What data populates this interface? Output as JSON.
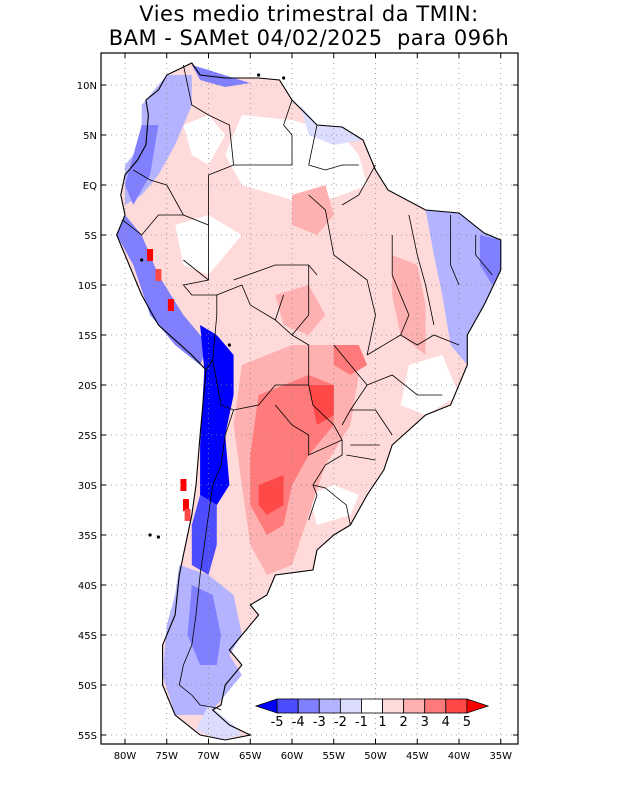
{
  "title": {
    "line1": "Vies medio trimestral da TMIN:",
    "line2": "BAM - SAMet 04/02/2025  para 096h"
  },
  "map": {
    "type": "filled-contour-map",
    "region": "South America",
    "variable": "TMIN bias",
    "grid": "dotted",
    "lon_range": [
      -83,
      -34
    ],
    "lat_range": [
      -56,
      13
    ],
    "x_ticks": [
      {
        "lon": -80,
        "label": "80W"
      },
      {
        "lon": -75,
        "label": "75W"
      },
      {
        "lon": -70,
        "label": "70W"
      },
      {
        "lon": -65,
        "label": "65W"
      },
      {
        "lon": -60,
        "label": "60W"
      },
      {
        "lon": -55,
        "label": "55W"
      },
      {
        "lon": -50,
        "label": "50W"
      },
      {
        "lon": -45,
        "label": "45W"
      },
      {
        "lon": -40,
        "label": "40W"
      },
      {
        "lon": -35,
        "label": "35W"
      }
    ],
    "y_ticks": [
      {
        "lat": 10,
        "label": "10N"
      },
      {
        "lat": 5,
        "label": "5N"
      },
      {
        "lat": 0,
        "label": "EQ"
      },
      {
        "lat": -5,
        "label": "5S"
      },
      {
        "lat": -10,
        "label": "10S"
      },
      {
        "lat": -15,
        "label": "15S"
      },
      {
        "lat": -20,
        "label": "20S"
      },
      {
        "lat": -25,
        "label": "25S"
      },
      {
        "lat": -30,
        "label": "30S"
      },
      {
        "lat": -35,
        "label": "35S"
      },
      {
        "lat": -40,
        "label": "40S"
      },
      {
        "lat": -45,
        "label": "45S"
      },
      {
        "lat": -50,
        "label": "50S"
      },
      {
        "lat": -55,
        "label": "55S"
      }
    ]
  },
  "colorbar": {
    "labels": [
      "-5",
      "-4",
      "-3",
      "-2",
      "-1",
      "1",
      "2",
      "3",
      "4",
      "5"
    ],
    "colors": [
      "#0000ff",
      "#4d4dff",
      "#8080ff",
      "#b3b3ff",
      "#dcdcff",
      "#ffffff",
      "#ffdada",
      "#ffb0b0",
      "#ff7a7a",
      "#ff4848",
      "#ff0000"
    ],
    "placement": "bottom-right"
  }
}
